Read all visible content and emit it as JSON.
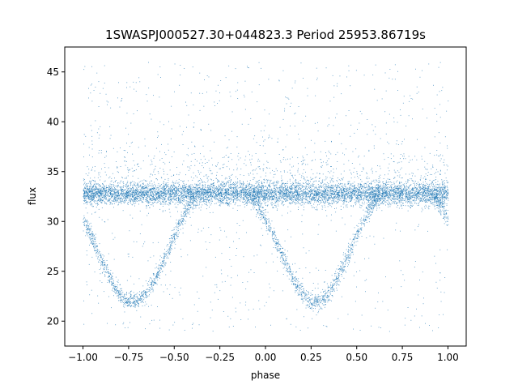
{
  "chart_data": {
    "type": "scatter",
    "title": "1SWASPJ000527.30+044823.3 Period 25953.86719s",
    "xlabel": "phase",
    "ylabel": "flux",
    "xlim": [
      -1.1,
      1.1
    ],
    "ylim": [
      17.5,
      47.5
    ],
    "xticks": [
      -1.0,
      -0.75,
      -0.5,
      -0.25,
      0.0,
      0.25,
      0.5,
      0.75,
      1.0
    ],
    "xtick_labels": [
      "−1.00",
      "−0.75",
      "−0.50",
      "−0.25",
      "0.00",
      "0.25",
      "0.50",
      "0.75",
      "1.00"
    ],
    "yticks": [
      20,
      25,
      30,
      35,
      40,
      45
    ],
    "ytick_labels": [
      "20",
      "25",
      "30",
      "35",
      "40",
      "45"
    ],
    "grid": false,
    "marker_color": "#1f77b4",
    "series": [
      {
        "light_curve": {
          "out_of_eclipse_flux": 32.8,
          "eclipse_minimum_flux": 22.0,
          "eclipse_centers": [
            -0.73,
            0.27
          ],
          "eclipse_halfwidth": 0.4,
          "phase_range": [
            -1.0,
            1.0
          ]
        }
      }
    ]
  }
}
